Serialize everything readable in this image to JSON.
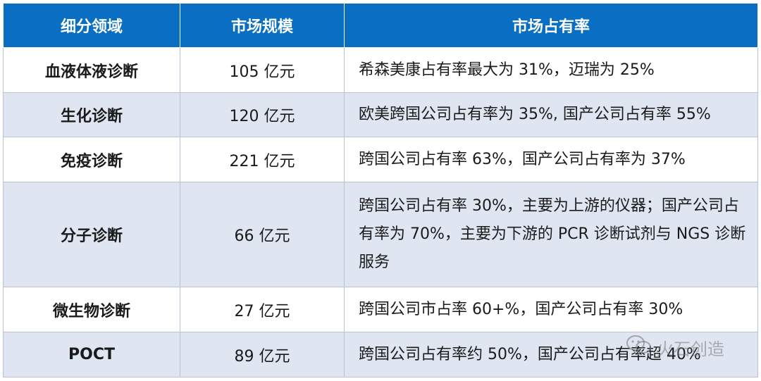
{
  "headers": [
    "细分领域",
    "市场规模",
    "市场占有率"
  ],
  "rows": [
    {
      "field": "血液体液诊断",
      "size": "105 亿元",
      "share": "希森美康占有率最大为 31%，迈瑞为 25%"
    },
    {
      "field": "生化诊断",
      "size": "120 亿元",
      "share": "欧美跨国公司占有率为 35%, 国产公司占有率 55%"
    },
    {
      "field": "免疫诊断",
      "size": "221 亿元",
      "share": "跨国公司占有率 63%，国产公司占有率为 37%"
    },
    {
      "field": "分子诊断",
      "size": "66 亿元",
      "share": "跨国公司占有率 30%，主要为上游的仪器；国产公司占有率为 70%，主要为下游的 PCR 诊断试剂与 NGS 诊断服务"
    },
    {
      "field": "微生物诊断",
      "size": "27 亿元",
      "share": "跨国公司市占率 60+%，国产公司占有率 30%"
    },
    {
      "field": "POCT",
      "size": "89 亿元",
      "share": "跨国公司占有率约 50%，国产公司占有率超 40%"
    }
  ],
  "watermark": {
    "text": "火石创造",
    "icon": "wechat-icon"
  },
  "colors": {
    "header_bg": "#0a6fc2",
    "alt_row_bg": "#dfe6f2",
    "border": "#b8c2d3"
  }
}
